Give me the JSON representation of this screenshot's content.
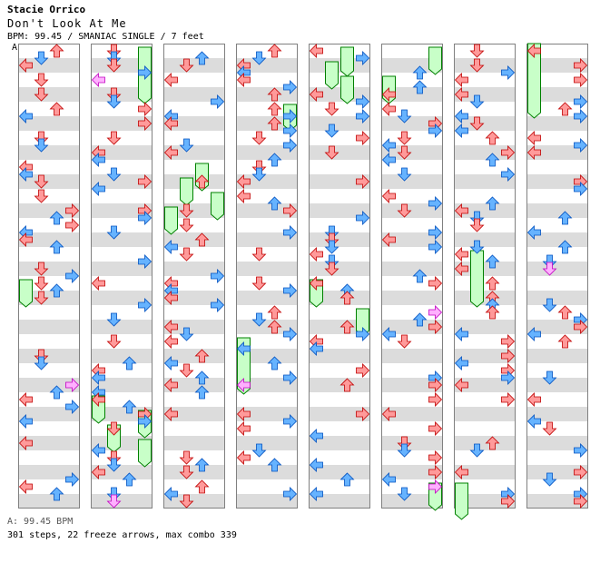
{
  "header": {
    "artist": "Stacie Orrico",
    "title": "Don't Look At Me",
    "meta": "BPM: 99.45 / SMANIAC SINGLE / 7 feet",
    "marker": "A"
  },
  "footer": {
    "bpm_line": "A: 99.45 BPM",
    "stats": "301 steps, 22 freeze arrows, max combo 339"
  },
  "colors": {
    "stripe_light": "#ffffff",
    "stripe_dark": "#dcdcdc",
    "arrow_red": "#ff9a9a",
    "arrow_red_stroke": "#c00000",
    "arrow_blue": "#66b3ff",
    "arrow_blue_stroke": "#0050c0",
    "arrow_pink": "#ffb0ff",
    "arrow_pink_stroke": "#c000c0",
    "freeze_fill": "#c8ffc8",
    "freeze_stroke": "#008000"
  },
  "chart_data": {
    "type": "step-chart",
    "columns": 8,
    "measures_per_column": 8,
    "lanes": [
      "left",
      "down",
      "up",
      "right"
    ],
    "steps_total": 301,
    "freeze_arrows": 22,
    "max_combo": 339,
    "bpm": 99.45
  }
}
